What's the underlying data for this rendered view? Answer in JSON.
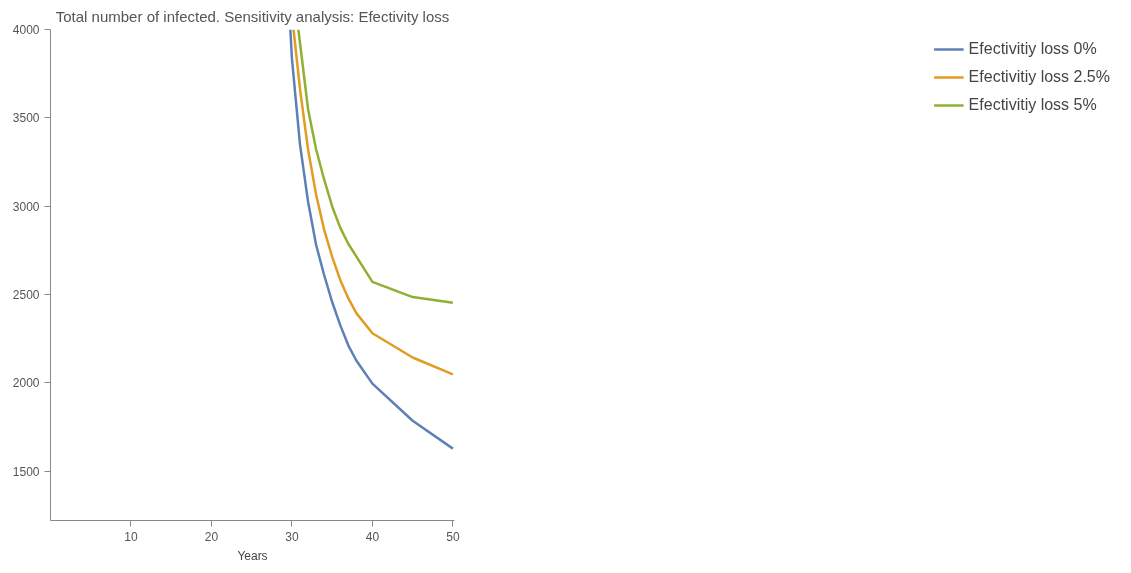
{
  "chart_data": {
    "type": "line",
    "title": "Total number of infected. Sensitivity analysis: Efectivity loss",
    "xlabel": "Years",
    "xlim": [
      0,
      50.2
    ],
    "ylim": [
      1220,
      4000
    ],
    "xticks": [
      10,
      20,
      30,
      40,
      50
    ],
    "yticks": [
      1500,
      2000,
      2500,
      3000,
      3500,
      4000
    ],
    "grid": false,
    "legend": "right",
    "series": [
      {
        "name": "Efectivitiy loss 0%",
        "color": "#5e81b5",
        "x": [
          29.8,
          30,
          31,
          32,
          33,
          34,
          35,
          36,
          37,
          38,
          40,
          45,
          50
        ],
        "values": [
          4000,
          3835,
          3350,
          3026,
          2781,
          2610,
          2457,
          2326,
          2212,
          2126,
          1995,
          1785,
          1627
        ]
      },
      {
        "name": "Efectivitiy loss 2.5%",
        "color": "#e19c24",
        "x": [
          30.2,
          31,
          32,
          33,
          34,
          35,
          36,
          37,
          38,
          40,
          45,
          50
        ],
        "values": [
          4000,
          3664,
          3322,
          3066,
          2867,
          2713,
          2582,
          2479,
          2394,
          2280,
          2143,
          2047
        ]
      },
      {
        "name": "Efectivitiy loss 5%",
        "color": "#8fb032",
        "x": [
          30.8,
          32,
          33,
          34,
          35,
          36,
          37,
          40,
          45,
          50
        ],
        "values": [
          4000,
          3550,
          3322,
          3151,
          2998,
          2878,
          2787,
          2571,
          2485,
          2453
        ]
      }
    ]
  }
}
